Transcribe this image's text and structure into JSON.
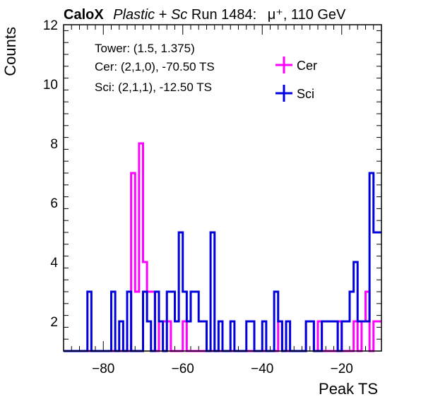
{
  "header": {
    "brand": "CaloX",
    "material_a": "Plastic",
    "plus": " + ",
    "material_b": "Sc",
    "run": "Run 1484:",
    "particle": "μ⁺, 110 GeV"
  },
  "info": {
    "tower": "Tower: (1.5, 1.375)",
    "cer": "Cer: (2,1,0), -70.50 TS",
    "sci": "Sci: (2,1,1), -12.50 TS"
  },
  "chart_data": {
    "type": "histogram",
    "xlabel": "Peak TS",
    "ylabel": "Counts",
    "xlim": [
      -90,
      -10
    ],
    "ylim": [
      1,
      12
    ],
    "bin_width": 1,
    "x_ticks": [
      -80,
      -60,
      -40,
      -20
    ],
    "y_ticks": [
      2,
      4,
      6,
      8,
      10,
      12
    ],
    "legend_position": "top-right",
    "series": [
      {
        "name": "Cer",
        "color": "#ff00ff",
        "bins": [
          {
            "x": -73,
            "y": 7
          },
          {
            "x": -72,
            "y": 3
          },
          {
            "x": -71,
            "y": 8
          },
          {
            "x": -70,
            "y": 4
          },
          {
            "x": -69,
            "y": 3
          },
          {
            "x": -68,
            "y": 3
          },
          {
            "x": -66,
            "y": 2
          },
          {
            "x": -65,
            "y": 2
          },
          {
            "x": -64,
            "y": 2
          },
          {
            "x": -60,
            "y": 2
          },
          {
            "x": -46,
            "y": 1
          },
          {
            "x": -36,
            "y": 2
          },
          {
            "x": -29,
            "y": 2
          },
          {
            "x": -28,
            "y": 2
          },
          {
            "x": -26,
            "y": 2
          },
          {
            "x": -21,
            "y": 2
          },
          {
            "x": -17,
            "y": 2
          },
          {
            "x": -15,
            "y": 2
          },
          {
            "x": -14,
            "y": 3
          },
          {
            "x": -12,
            "y": 2
          },
          {
            "x": -11,
            "y": 2
          }
        ]
      },
      {
        "name": "Sci",
        "color": "#0000dd",
        "bins": [
          {
            "x": -84,
            "y": 3
          },
          {
            "x": -78,
            "y": 3
          },
          {
            "x": -76,
            "y": 2
          },
          {
            "x": -74,
            "y": 3
          },
          {
            "x": -70,
            "y": 3
          },
          {
            "x": -69,
            "y": 2
          },
          {
            "x": -67,
            "y": 3
          },
          {
            "x": -66,
            "y": 2
          },
          {
            "x": -64,
            "y": 3
          },
          {
            "x": -63,
            "y": 3
          },
          {
            "x": -62,
            "y": 2
          },
          {
            "x": -61,
            "y": 5
          },
          {
            "x": -60,
            "y": 3
          },
          {
            "x": -59,
            "y": 2
          },
          {
            "x": -58,
            "y": 3
          },
          {
            "x": -57,
            "y": 3
          },
          {
            "x": -56,
            "y": 2
          },
          {
            "x": -55,
            "y": 2
          },
          {
            "x": -53,
            "y": 5
          },
          {
            "x": -51,
            "y": 2
          },
          {
            "x": -48,
            "y": 2
          },
          {
            "x": -44,
            "y": 2
          },
          {
            "x": -43,
            "y": 2
          },
          {
            "x": -40,
            "y": 2
          },
          {
            "x": -37,
            "y": 3
          },
          {
            "x": -36,
            "y": 2
          },
          {
            "x": -34,
            "y": 2
          },
          {
            "x": -29,
            "y": 2
          },
          {
            "x": -28,
            "y": 2
          },
          {
            "x": -25,
            "y": 2
          },
          {
            "x": -24,
            "y": 2
          },
          {
            "x": -23,
            "y": 2
          },
          {
            "x": -22,
            "y": 2
          },
          {
            "x": -20,
            "y": 2
          },
          {
            "x": -19,
            "y": 2
          },
          {
            "x": -18,
            "y": 3
          },
          {
            "x": -17,
            "y": 4
          },
          {
            "x": -16,
            "y": 2
          },
          {
            "x": -15,
            "y": 2
          },
          {
            "x": -14,
            "y": 2
          },
          {
            "x": -13,
            "y": 7
          },
          {
            "x": -12,
            "y": 5
          },
          {
            "x": -11,
            "y": 5
          }
        ]
      }
    ]
  }
}
